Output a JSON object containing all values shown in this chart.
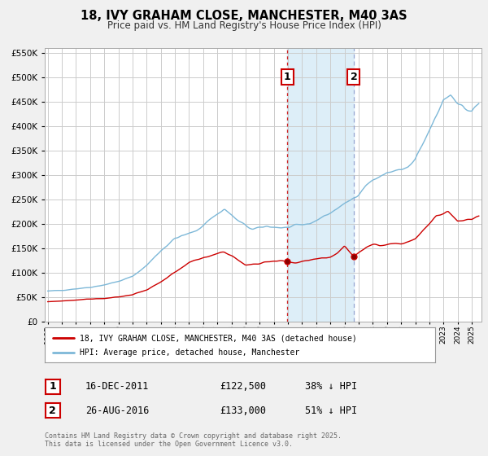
{
  "title": "18, IVY GRAHAM CLOSE, MANCHESTER, M40 3AS",
  "subtitle": "Price paid vs. HM Land Registry's House Price Index (HPI)",
  "hpi_label": "HPI: Average price, detached house, Manchester",
  "property_label": "18, IVY GRAHAM CLOSE, MANCHESTER, M40 3AS (detached house)",
  "hpi_color": "#7db8d8",
  "property_color": "#cc0000",
  "shaded_color": "#ddeef8",
  "vline1_color": "#cc0000",
  "vline2_color": "#8899cc",
  "ytick_values": [
    0,
    50000,
    100000,
    150000,
    200000,
    250000,
    300000,
    350000,
    400000,
    450000,
    500000,
    550000
  ],
  "xmin": 1994.8,
  "xmax": 2025.7,
  "ymin": 0,
  "ymax": 560000,
  "event1_x": 2011.96,
  "event1_label": "1",
  "event1_date": "16-DEC-2011",
  "event1_price": "£122,500",
  "event1_hpi": "38% ↓ HPI",
  "event1_price_val": 122500,
  "event2_x": 2016.65,
  "event2_label": "2",
  "event2_date": "26-AUG-2016",
  "event2_price": "£133,000",
  "event2_hpi": "51% ↓ HPI",
  "event2_price_val": 133000,
  "footer": "Contains HM Land Registry data © Crown copyright and database right 2025.\nThis data is licensed under the Open Government Licence v3.0.",
  "background_color": "#f0f0f0",
  "plot_bg_color": "#ffffff",
  "grid_color": "#cccccc"
}
